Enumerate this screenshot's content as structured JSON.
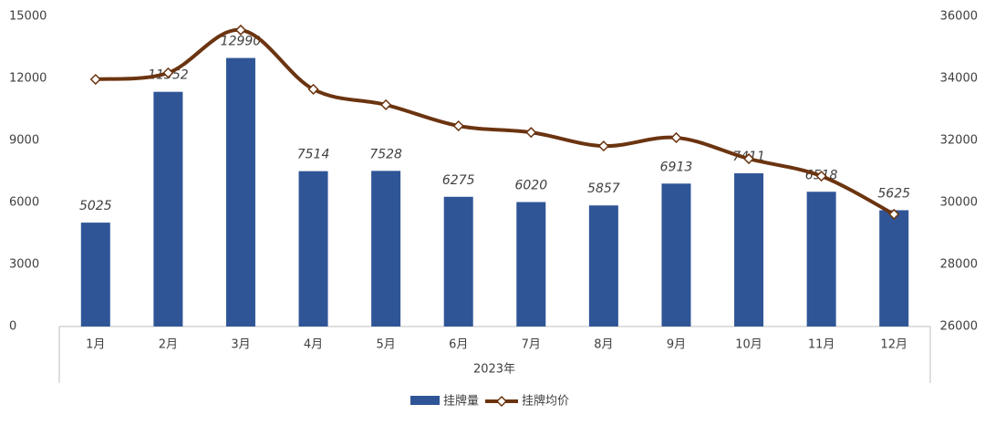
{
  "chart_data": {
    "type": "bar_line",
    "categories": [
      "1月",
      "2月",
      "3月",
      "4月",
      "5月",
      "6月",
      "7月",
      "8月",
      "9月",
      "10月",
      "11月",
      "12月"
    ],
    "x_label": "2023年",
    "series": [
      {
        "name": "挂牌量",
        "type": "bar",
        "color": "#2f5597",
        "values": [
          5025,
          11352,
          12990,
          7514,
          7528,
          6275,
          6020,
          5857,
          6913,
          7411,
          6518,
          5625
        ]
      },
      {
        "name": "挂牌均价",
        "type": "line",
        "axis": "y2",
        "color": "#6b3410",
        "values": [
          33970,
          34180,
          35560,
          33650,
          33150,
          32470,
          32260,
          31820,
          32090,
          31410,
          30850,
          29620
        ]
      }
    ],
    "ylim": [
      0,
      15000
    ],
    "yticks": [
      0,
      3000,
      6000,
      9000,
      12000,
      15000
    ],
    "y2lim": [
      26000,
      36000
    ],
    "y2ticks": [
      26000,
      28000,
      30000,
      32000,
      34000,
      36000
    ],
    "legend": "bottom"
  }
}
